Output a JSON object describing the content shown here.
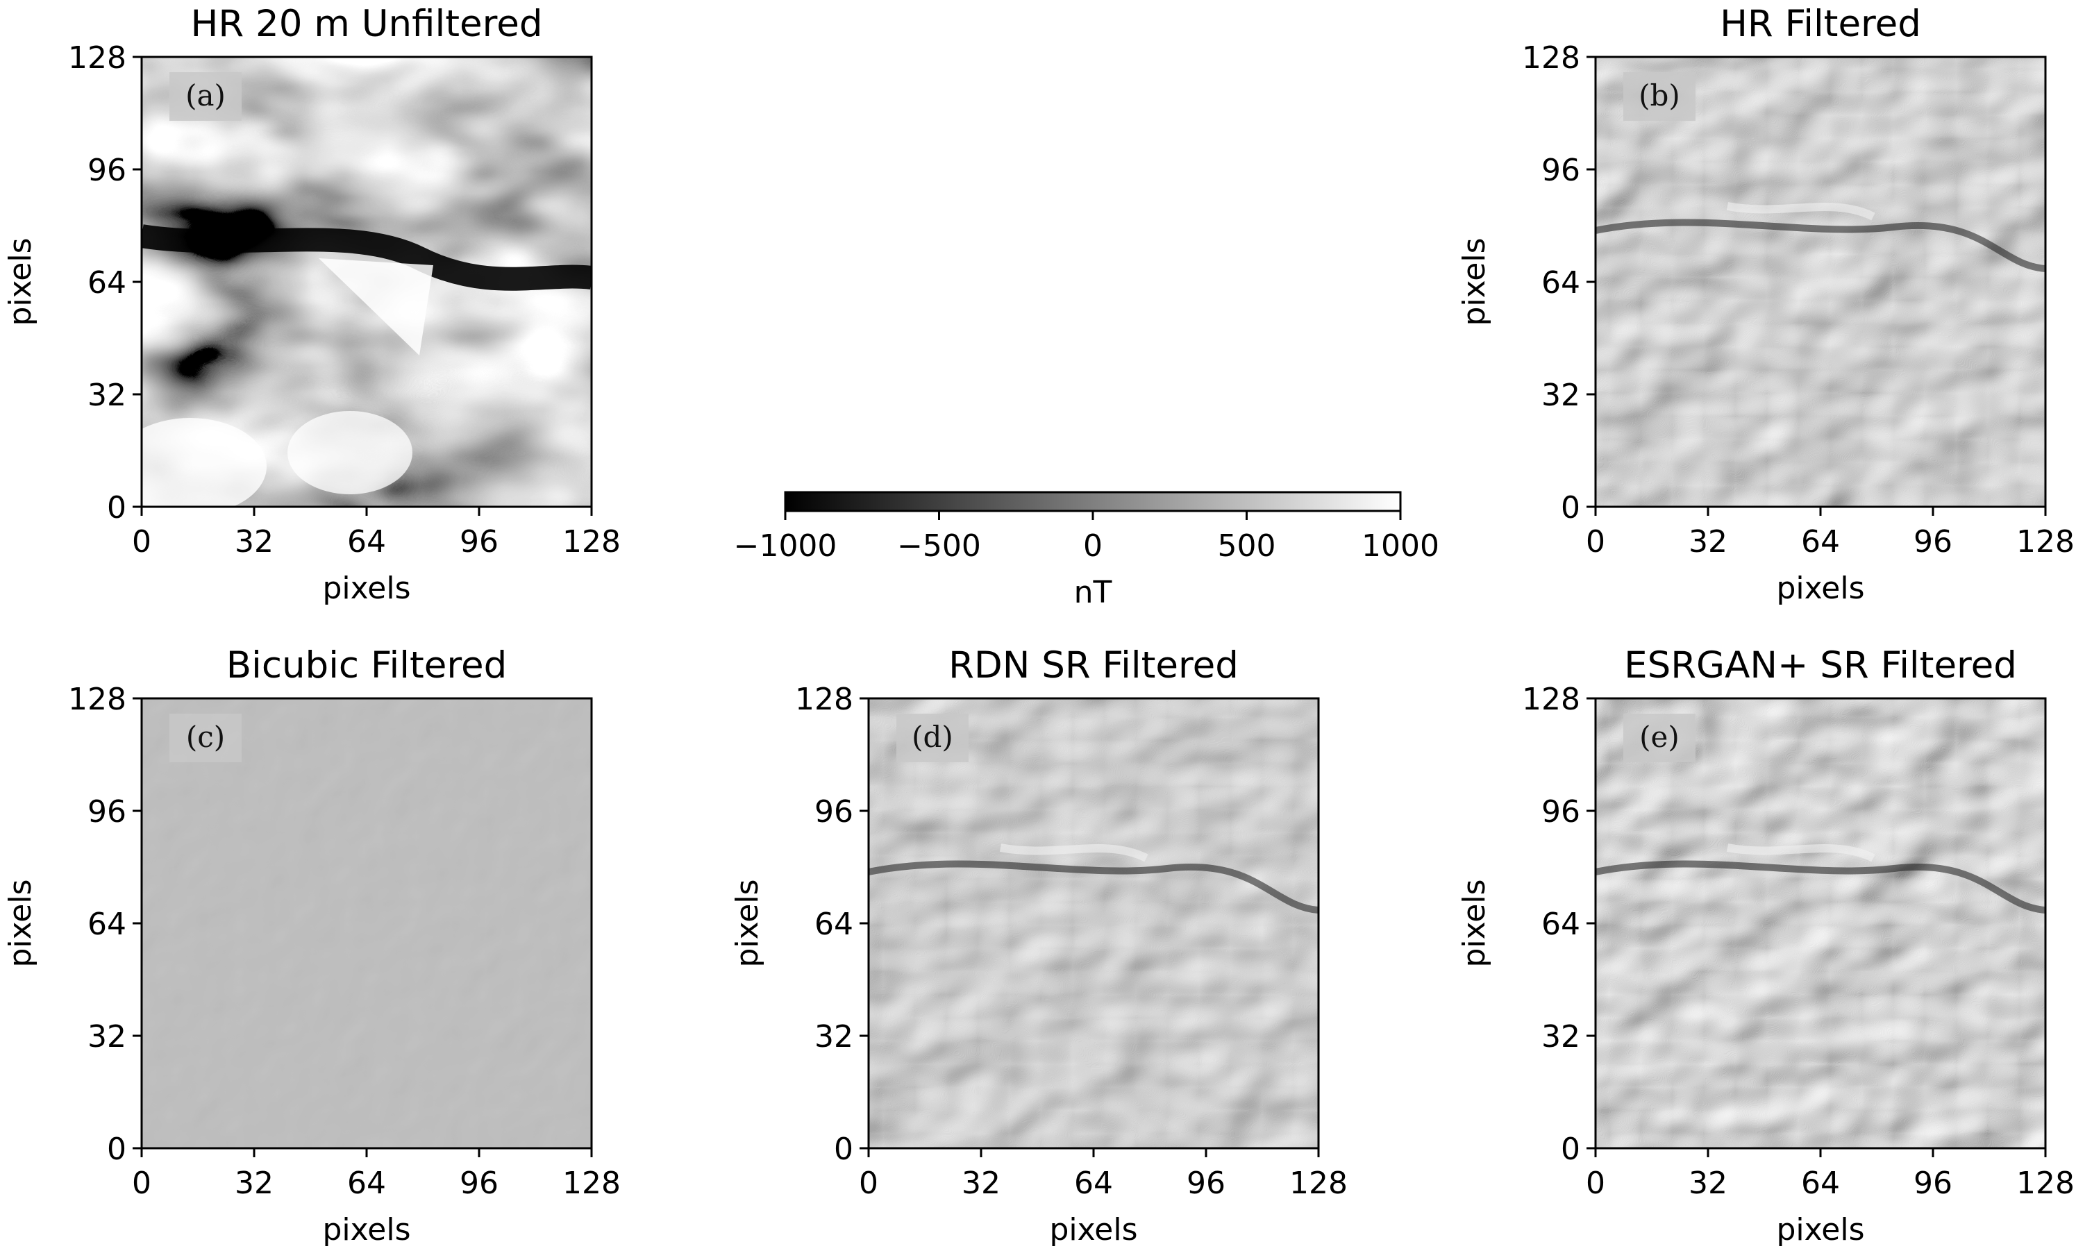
{
  "chart_data": [
    {
      "type": "heatmap",
      "panel_label": "(a)",
      "title": "HR 20 m Unfiltered",
      "xlabel": "pixels",
      "ylabel": "pixels",
      "xlim": [
        0,
        128
      ],
      "ylim": [
        0,
        128
      ],
      "xticks": [
        0,
        32,
        64,
        96,
        128
      ],
      "yticks": [
        0,
        32,
        64,
        96,
        128
      ],
      "colormap": "gray",
      "units": "nT",
      "clim": [
        -1000,
        1000
      ]
    },
    {
      "type": "heatmap",
      "panel_label": "(b)",
      "title": "HR Filtered",
      "xlabel": "pixels",
      "ylabel": "pixels",
      "xlim": [
        0,
        128
      ],
      "ylim": [
        0,
        128
      ],
      "xticks": [
        0,
        32,
        64,
        96,
        128
      ],
      "yticks": [
        0,
        32,
        64,
        96,
        128
      ],
      "colormap": "gray",
      "units": "nT",
      "clim": [
        -1000,
        1000
      ]
    },
    {
      "type": "heatmap",
      "panel_label": "(c)",
      "title": "Bicubic Filtered",
      "xlabel": "pixels",
      "ylabel": "pixels",
      "xlim": [
        0,
        128
      ],
      "ylim": [
        0,
        128
      ],
      "xticks": [
        0,
        32,
        64,
        96,
        128
      ],
      "yticks": [
        0,
        32,
        64,
        96,
        128
      ],
      "colormap": "gray",
      "units": "nT",
      "clim": [
        -1000,
        1000
      ]
    },
    {
      "type": "heatmap",
      "panel_label": "(d)",
      "title": "RDN SR Filtered",
      "xlabel": "pixels",
      "ylabel": "pixels",
      "xlim": [
        0,
        128
      ],
      "ylim": [
        0,
        128
      ],
      "xticks": [
        0,
        32,
        64,
        96,
        128
      ],
      "yticks": [
        0,
        32,
        64,
        96,
        128
      ],
      "colormap": "gray",
      "units": "nT",
      "clim": [
        -1000,
        1000
      ]
    },
    {
      "type": "heatmap",
      "panel_label": "(e)",
      "title": "ESRGAN+ SR Filtered",
      "xlabel": "pixels",
      "ylabel": "pixels",
      "xlim": [
        0,
        128
      ],
      "ylim": [
        0,
        128
      ],
      "xticks": [
        0,
        32,
        64,
        96,
        128
      ],
      "yticks": [
        0,
        32,
        64,
        96,
        128
      ],
      "colormap": "gray",
      "units": "nT",
      "clim": [
        -1000,
        1000
      ]
    }
  ],
  "colorbar": {
    "label": "nT",
    "ticks": [
      -1000,
      -500,
      0,
      500,
      1000
    ],
    "tick_labels": [
      "−1000",
      "−500",
      "0",
      "500",
      "1000"
    ],
    "range": [
      -1000,
      1000
    ],
    "colormap": "gray"
  }
}
